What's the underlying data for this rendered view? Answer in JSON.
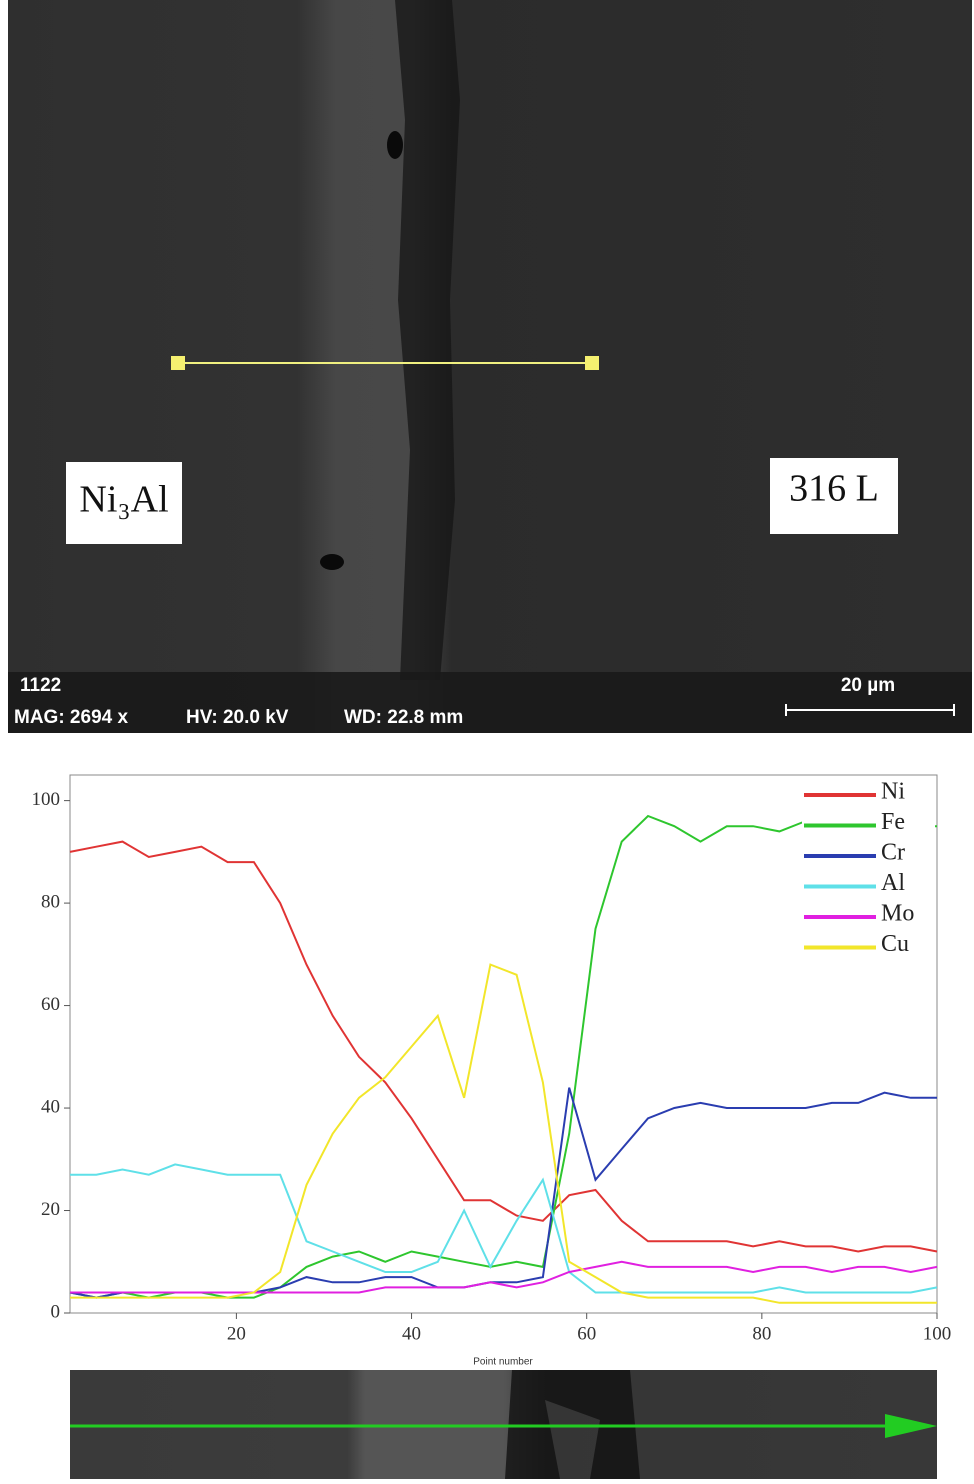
{
  "image_labels": {
    "left_phase": "Ni₃Al",
    "right_phase": "316 L",
    "image_id": "1122",
    "magnification": "MAG: 2694 x",
    "voltage": "HV: 20.0 kV",
    "working_distance": "WD: 22.8 mm",
    "scale_bar": "20 µm"
  },
  "chart_data": {
    "type": "line",
    "x_label": "Point number",
    "x": [
      1,
      4,
      7,
      10,
      13,
      16,
      19,
      22,
      25,
      28,
      31,
      34,
      37,
      40,
      43,
      46,
      49,
      52,
      55,
      58,
      61,
      64,
      67,
      70,
      73,
      76,
      79,
      82,
      85,
      88,
      91,
      94,
      97,
      100
    ],
    "series": [
      {
        "name": "Ni",
        "color": "#e03434",
        "values": [
          90,
          91,
          92,
          89,
          90,
          91,
          88,
          88,
          80,
          68,
          58,
          50,
          45,
          38,
          30,
          22,
          22,
          19,
          18,
          23,
          24,
          18,
          14,
          14,
          14,
          14,
          13,
          14,
          13,
          13,
          12,
          13,
          13,
          12
        ]
      },
      {
        "name": "Fe",
        "color": "#2ec62e",
        "values": [
          4,
          3,
          4,
          3,
          4,
          4,
          3,
          3,
          5,
          9,
          11,
          12,
          10,
          12,
          11,
          10,
          9,
          10,
          9,
          35,
          75,
          92,
          97,
          95,
          92,
          95,
          95,
          94,
          96,
          95,
          95,
          95,
          95,
          95
        ]
      },
      {
        "name": "Cr",
        "color": "#2a3db0",
        "values": [
          4,
          3,
          4,
          4,
          4,
          4,
          4,
          4,
          5,
          7,
          6,
          6,
          7,
          7,
          5,
          5,
          6,
          6,
          7,
          44,
          26,
          32,
          38,
          40,
          41,
          40,
          40,
          40,
          40,
          41,
          41,
          43,
          42,
          42
        ]
      },
      {
        "name": "Al",
        "color": "#5fe0e8",
        "values": [
          27,
          27,
          28,
          27,
          29,
          28,
          27,
          27,
          27,
          14,
          12,
          10,
          8,
          8,
          10,
          20,
          9,
          18,
          26,
          8,
          4,
          4,
          4,
          4,
          4,
          4,
          4,
          5,
          4,
          4,
          4,
          4,
          4,
          5
        ]
      },
      {
        "name": "Mo",
        "color": "#e020e0",
        "values": [
          4,
          4,
          4,
          4,
          4,
          4,
          4,
          4,
          4,
          4,
          4,
          4,
          5,
          5,
          5,
          5,
          6,
          5,
          6,
          8,
          9,
          10,
          9,
          9,
          9,
          9,
          8,
          9,
          9,
          8,
          9,
          9,
          8,
          9
        ]
      },
      {
        "name": "Cu",
        "color": "#f2e62a",
        "values": [
          3,
          3,
          3,
          3,
          3,
          3,
          3,
          4,
          8,
          25,
          35,
          42,
          46,
          52,
          58,
          42,
          68,
          66,
          45,
          10,
          7,
          4,
          3,
          3,
          3,
          3,
          3,
          2,
          2,
          2,
          2,
          2,
          2,
          2
        ]
      }
    ],
    "xlim": [
      1,
      100
    ],
    "ylim": [
      0,
      105
    ],
    "xticks": [
      20,
      40,
      60,
      80,
      100
    ],
    "yticks": [
      0,
      20,
      40,
      60,
      80,
      100
    ],
    "legend": "upper right"
  }
}
